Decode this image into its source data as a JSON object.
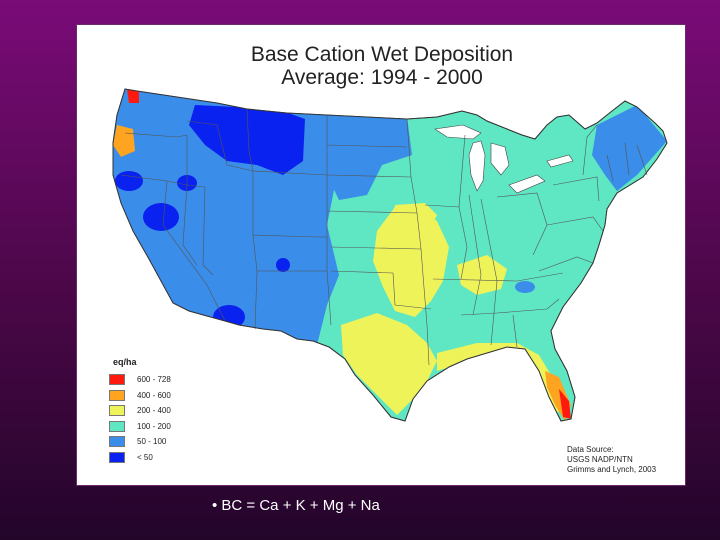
{
  "title": {
    "line1": "Base Cation Wet Deposition",
    "line2": "Average: 1994 - 2000"
  },
  "legend": {
    "unit": "eq/ha",
    "classes": [
      {
        "label": "600 - 728",
        "color": "#ff1a10"
      },
      {
        "label": "400 - 600",
        "color": "#ffa420"
      },
      {
        "label": "200 - 400",
        "color": "#eef35a"
      },
      {
        "label": "100 - 200",
        "color": "#5fe6c3"
      },
      {
        "label": "50 - 100",
        "color": "#3a8de8"
      },
      {
        "label": "< 50",
        "color": "#0a22f0"
      }
    ]
  },
  "source": {
    "line1": "Data Source:",
    "line2": "USGS NADP/NTN",
    "line3": "Grimms and Lynch, 2003"
  },
  "footnote": "• BC = Ca + K + Mg + Na"
}
